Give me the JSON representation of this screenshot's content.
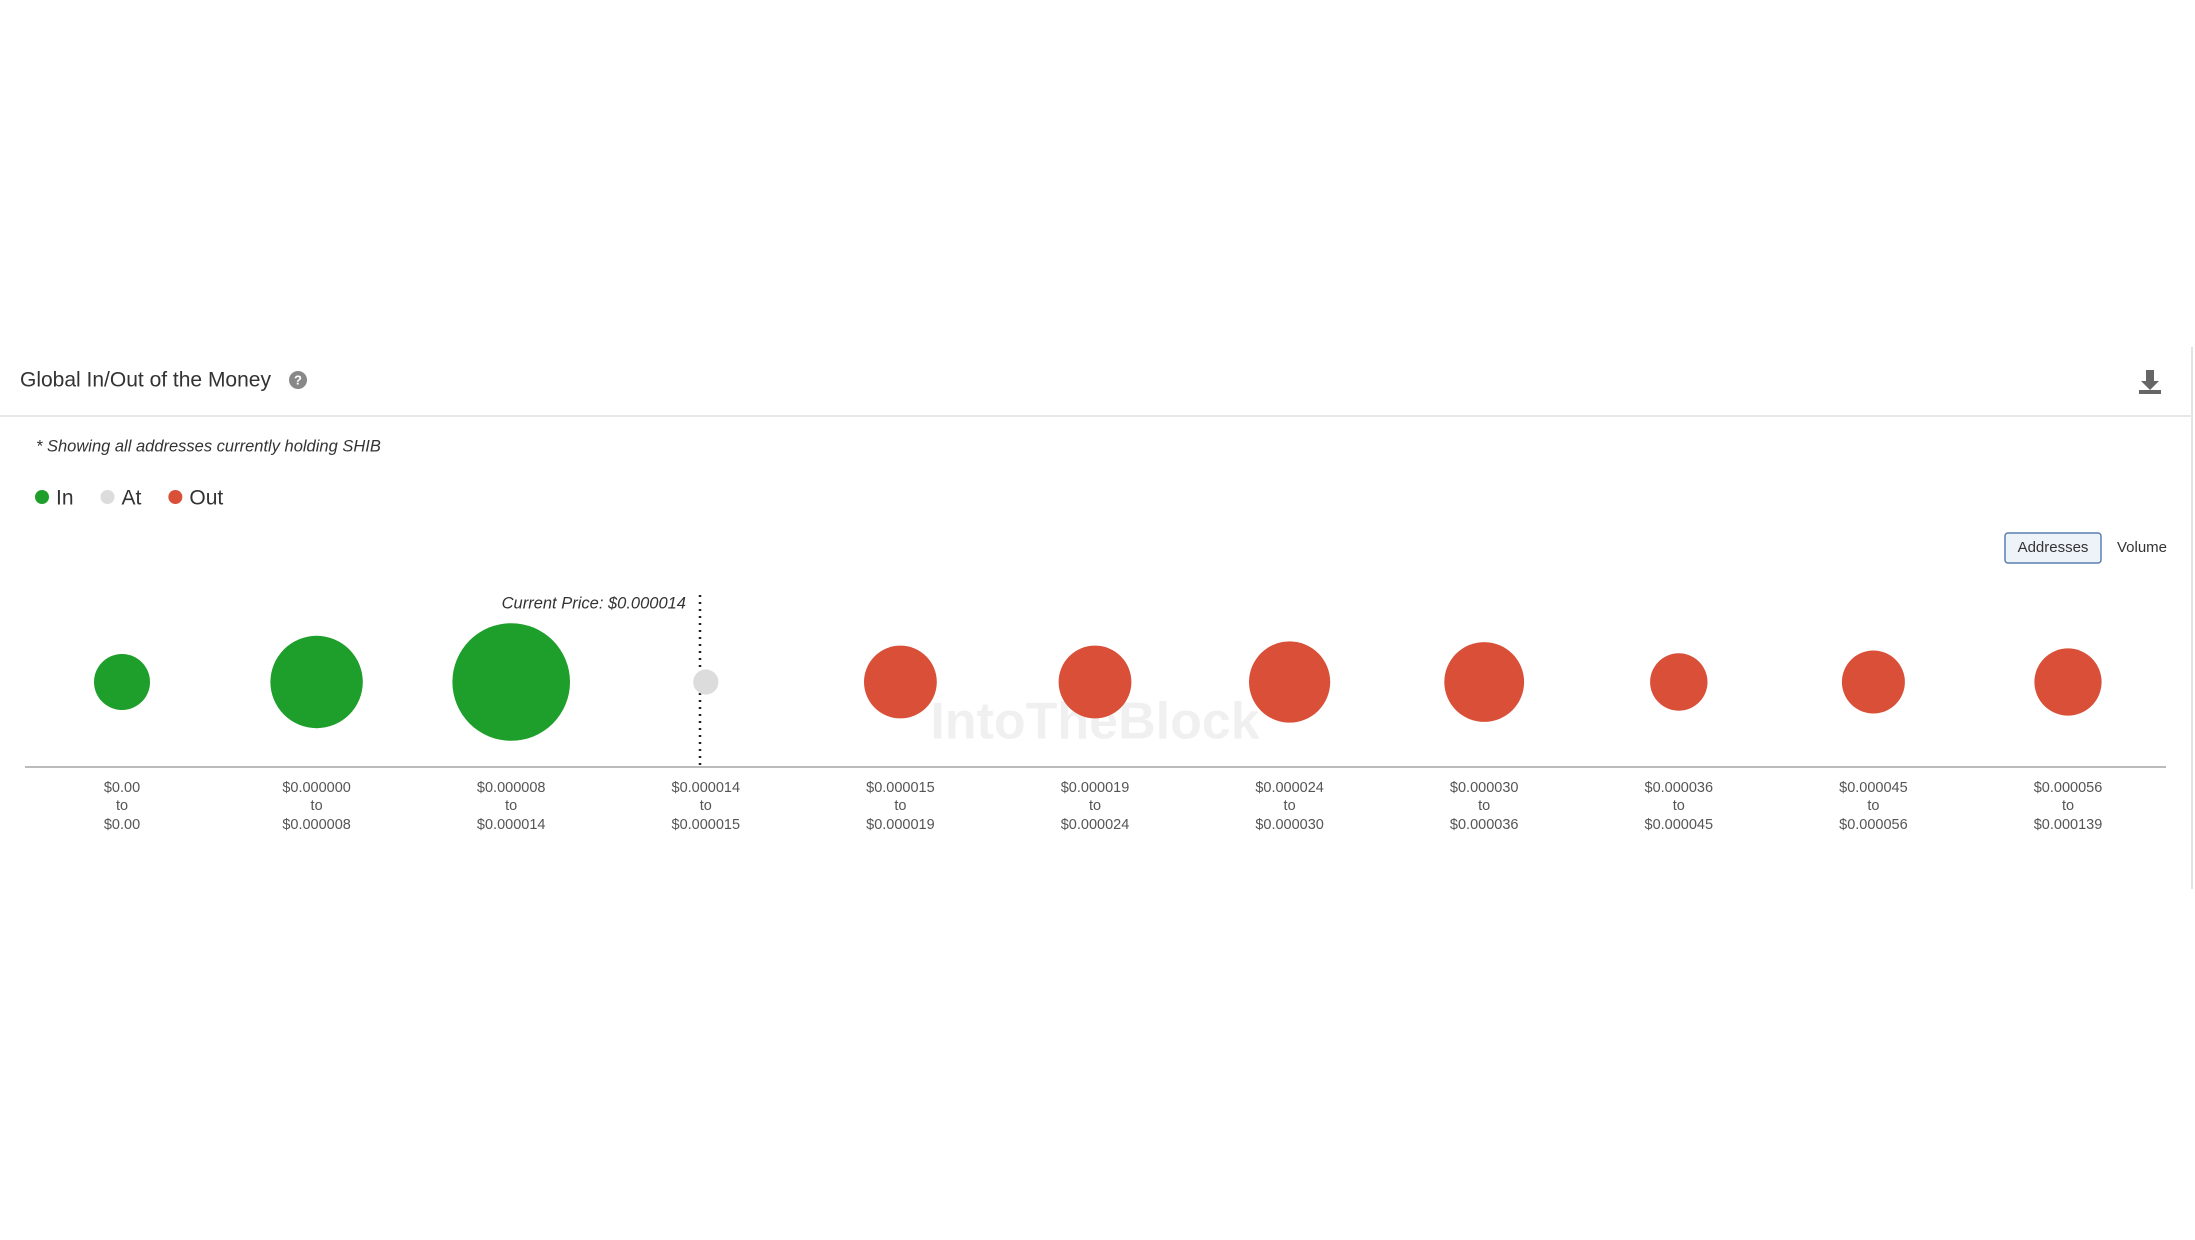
{
  "chart_data": {
    "type": "bubble",
    "title": "Global In/Out of the Money",
    "subtitle": "* Showing all addresses currently holding SHIB",
    "annotation": "Current Price: $0.000014",
    "watermark": "IntoTheBlock",
    "buttons": [
      "Addresses",
      "Volume"
    ],
    "range_word": "to",
    "category_from": [
      "$0.00",
      "$0.000000",
      "$0.000008",
      "$0.000014",
      "$0.000015",
      "$0.000019",
      "$0.000024",
      "$0.000030",
      "$0.000036",
      "$0.000045",
      "$0.000056"
    ],
    "category_to": [
      "$0.00",
      "$0.000008",
      "$0.000014",
      "$0.000015",
      "$0.000019",
      "$0.000024",
      "$0.000030",
      "$0.000036",
      "$0.000045",
      "$0.000056",
      "$0.000139"
    ],
    "series": [
      {
        "name": "In",
        "color": "#1e9e2b",
        "values": [
          40,
          66,
          84,
          null,
          null,
          null,
          null,
          null,
          null,
          null,
          null
        ]
      },
      {
        "name": "At",
        "color": "#dcdcdc",
        "values": [
          null,
          null,
          null,
          18,
          null,
          null,
          null,
          null,
          null,
          null,
          null
        ]
      },
      {
        "name": "Out",
        "color": "#d94f38",
        "values": [
          null,
          null,
          null,
          null,
          52,
          52,
          58,
          57,
          41,
          45,
          48
        ]
      }
    ]
  }
}
